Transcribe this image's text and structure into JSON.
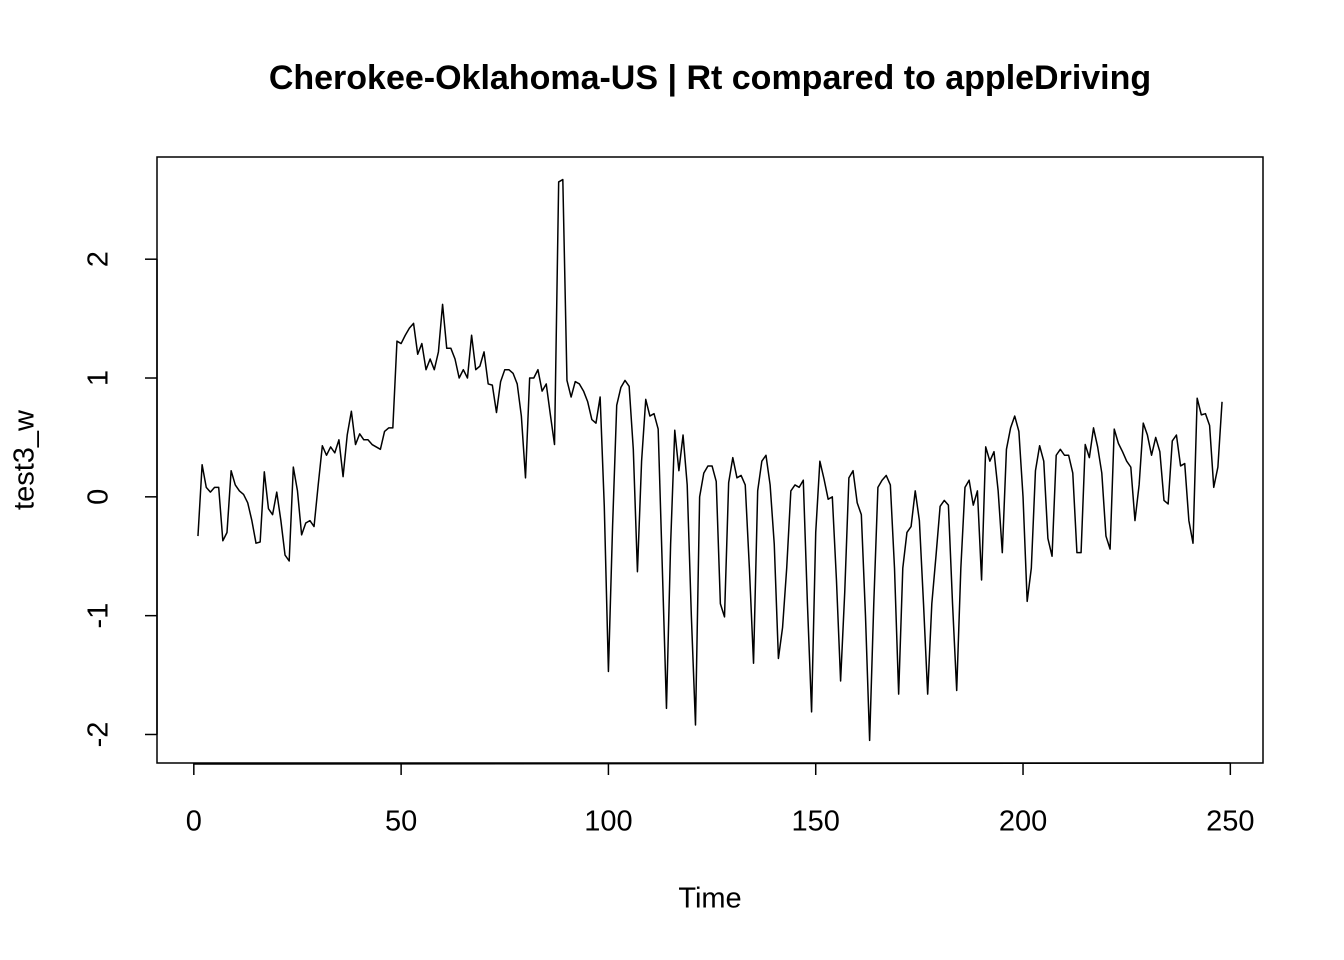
{
  "chart_data": {
    "type": "line",
    "title": "Cherokee-Oklahoma-US | Rt compared to appleDriving",
    "x_label": "Time",
    "y_label": "test3_w",
    "xlim": [
      -8.88,
      257.88
    ],
    "ylim": [
      -2.24,
      2.86
    ],
    "xticks": [
      0,
      50,
      100,
      150,
      200,
      250
    ],
    "yticks": [
      -2,
      -1,
      0,
      1,
      2
    ],
    "grid": false,
    "x": [
      1,
      2,
      3,
      4,
      5,
      6,
      7,
      8,
      9,
      10,
      11,
      12,
      13,
      14,
      15,
      16,
      17,
      18,
      19,
      20,
      21,
      22,
      23,
      24,
      25,
      26,
      27,
      28,
      29,
      30,
      31,
      32,
      33,
      34,
      35,
      36,
      37,
      38,
      39,
      40,
      41,
      42,
      43,
      44,
      45,
      46,
      47,
      48,
      49,
      50,
      51,
      52,
      53,
      54,
      55,
      56,
      57,
      58,
      59,
      60,
      61,
      62,
      63,
      64,
      65,
      66,
      67,
      68,
      69,
      70,
      71,
      72,
      73,
      74,
      75,
      76,
      77,
      78,
      79,
      80,
      81,
      82,
      83,
      84,
      85,
      86,
      87,
      88,
      89,
      90,
      91,
      92,
      93,
      94,
      95,
      96,
      97,
      98,
      99,
      100,
      101,
      102,
      103,
      104,
      105,
      106,
      107,
      108,
      109,
      110,
      111,
      112,
      113,
      114,
      115,
      116,
      117,
      118,
      119,
      120,
      121,
      122,
      123,
      124,
      125,
      126,
      127,
      128,
      129,
      130,
      131,
      132,
      133,
      134,
      135,
      136,
      137,
      138,
      139,
      140,
      141,
      142,
      143,
      144,
      145,
      146,
      147,
      148,
      149,
      150,
      151,
      152,
      153,
      154,
      155,
      156,
      157,
      158,
      159,
      160,
      161,
      162,
      163,
      164,
      165,
      166,
      167,
      168,
      169,
      170,
      171,
      172,
      173,
      174,
      175,
      176,
      177,
      178,
      179,
      180,
      181,
      182,
      183,
      184,
      185,
      186,
      187,
      188,
      189,
      190,
      191,
      192,
      193,
      194,
      195,
      196,
      197,
      198,
      199,
      200,
      201,
      202,
      203,
      204,
      205,
      206,
      207,
      208,
      209,
      210,
      211,
      212,
      213,
      214,
      215,
      216,
      217,
      218,
      219,
      220,
      221,
      222,
      223,
      224,
      225,
      226,
      227,
      228,
      229,
      230,
      231,
      232,
      233,
      234,
      235,
      236,
      237,
      238,
      239,
      240,
      241,
      242,
      243,
      244,
      245,
      246,
      247,
      248
    ],
    "series": [
      {
        "color": "#000000",
        "values": [
          -0.33,
          0.27,
          0.08,
          0.04,
          0.08,
          0.08,
          -0.37,
          -0.3,
          0.22,
          0.1,
          0.05,
          0.02,
          -0.05,
          -0.2,
          -0.39,
          -0.38,
          0.21,
          -0.1,
          -0.15,
          0.04,
          -0.2,
          -0.49,
          -0.54,
          0.25,
          0.05,
          -0.32,
          -0.22,
          -0.2,
          -0.25,
          0.1,
          0.43,
          0.35,
          0.42,
          0.37,
          0.48,
          0.17,
          0.52,
          0.72,
          0.44,
          0.53,
          0.48,
          0.48,
          0.44,
          0.42,
          0.4,
          0.55,
          0.58,
          0.58,
          1.31,
          1.29,
          1.36,
          1.42,
          1.46,
          1.2,
          1.29,
          1.07,
          1.16,
          1.07,
          1.22,
          1.62,
          1.25,
          1.25,
          1.16,
          1.0,
          1.07,
          1.0,
          1.36,
          1.07,
          1.1,
          1.22,
          0.95,
          0.94,
          0.71,
          0.97,
          1.07,
          1.07,
          1.04,
          0.95,
          0.68,
          0.16,
          1.0,
          1.0,
          1.07,
          0.89,
          0.95,
          0.69,
          0.44,
          2.65,
          2.67,
          0.98,
          0.84,
          0.97,
          0.95,
          0.89,
          0.8,
          0.65,
          0.62,
          0.84,
          -0.08,
          -1.47,
          -0.25,
          0.77,
          0.92,
          0.98,
          0.93,
          0.4,
          -0.63,
          0.3,
          0.82,
          0.68,
          0.7,
          0.57,
          -0.6,
          -1.78,
          -0.4,
          0.56,
          0.22,
          0.52,
          0.1,
          -1.0,
          -1.92,
          0.0,
          0.2,
          0.26,
          0.26,
          0.13,
          -0.9,
          -1.01,
          0.12,
          0.33,
          0.16,
          0.18,
          0.1,
          -0.6,
          -1.4,
          0.05,
          0.3,
          0.35,
          0.1,
          -0.4,
          -1.36,
          -1.1,
          -0.6,
          0.05,
          0.1,
          0.08,
          0.14,
          -0.9,
          -1.81,
          -0.3,
          0.3,
          0.15,
          -0.02,
          0.0,
          -0.7,
          -1.55,
          -0.8,
          0.16,
          0.22,
          -0.05,
          -0.15,
          -1.0,
          -2.05,
          -0.9,
          0.08,
          0.14,
          0.18,
          0.1,
          -0.6,
          -1.66,
          -0.6,
          -0.3,
          -0.25,
          0.05,
          -0.2,
          -0.9,
          -1.66,
          -0.9,
          -0.5,
          -0.08,
          -0.03,
          -0.07,
          -0.9,
          -1.63,
          -0.6,
          0.08,
          0.14,
          -0.07,
          0.05,
          -0.7,
          0.42,
          0.3,
          0.38,
          0.05,
          -0.47,
          0.4,
          0.58,
          0.68,
          0.55,
          0.0,
          -0.88,
          -0.6,
          0.22,
          0.43,
          0.3,
          -0.35,
          -0.5,
          0.35,
          0.4,
          0.35,
          0.35,
          0.2,
          -0.47,
          -0.47,
          0.44,
          0.33,
          0.58,
          0.42,
          0.2,
          -0.33,
          -0.44,
          0.57,
          0.45,
          0.38,
          0.3,
          0.25,
          -0.2,
          0.1,
          0.62,
          0.52,
          0.35,
          0.5,
          0.38,
          -0.03,
          -0.06,
          0.47,
          0.52,
          0.26,
          0.28,
          -0.2,
          -0.39,
          0.83,
          0.69,
          0.7,
          0.6,
          0.08,
          0.25,
          0.8
        ]
      }
    ]
  }
}
